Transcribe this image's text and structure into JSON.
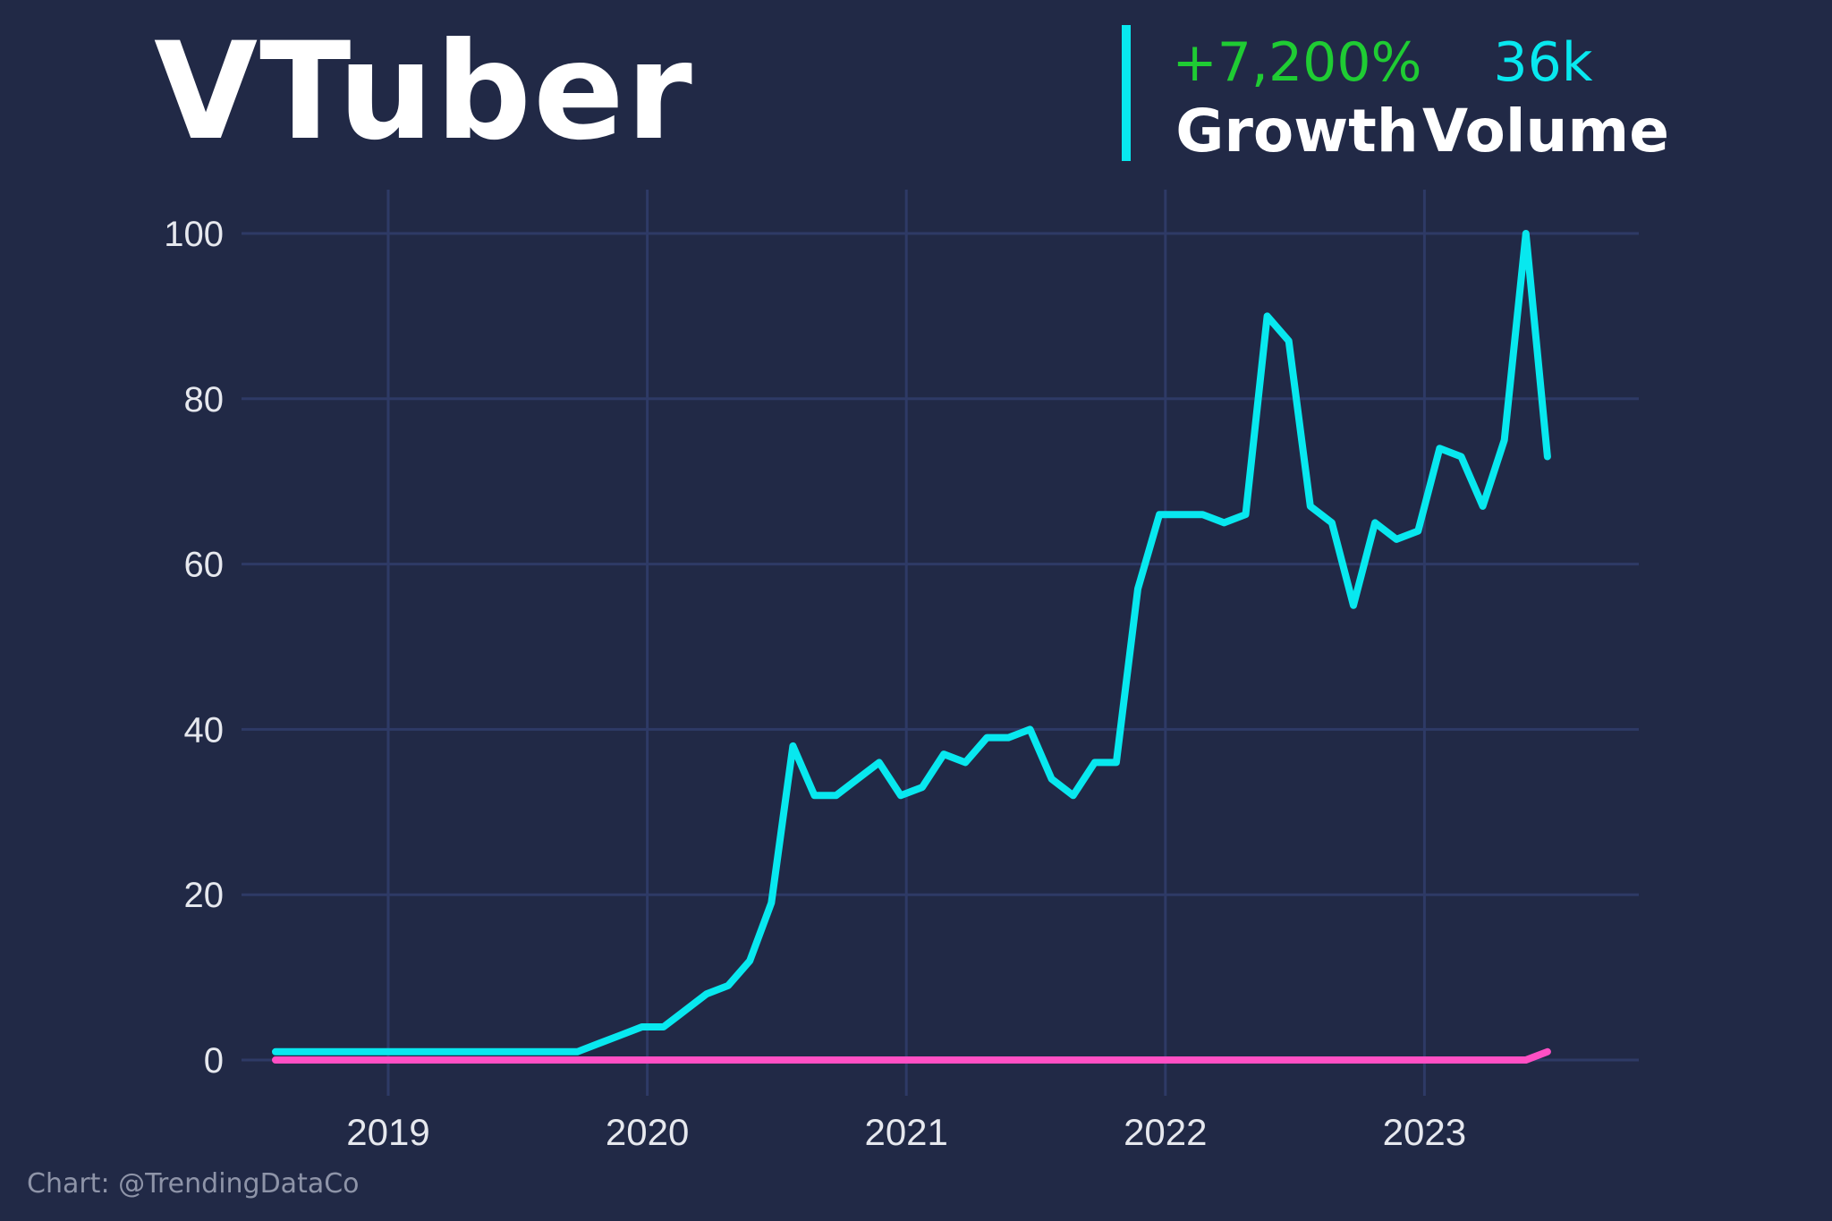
{
  "header": {
    "title": "VTuber",
    "growth_value": "+7,200%",
    "growth_label": "Growth",
    "volume_value": "36k",
    "volume_label": "Volume"
  },
  "footer": {
    "credit": "Chart: @TrendingDataCo"
  },
  "colors": {
    "background": "#212946",
    "accent": "#08e8ef",
    "growth": "#1fcc33",
    "secondary_series": "#ff4fc4",
    "grid": "#2e3a66"
  },
  "chart_data": {
    "type": "line",
    "title": "VTuber",
    "xlabel": "",
    "ylabel": "",
    "ylim": [
      0,
      100
    ],
    "yticks": [
      0,
      20,
      40,
      60,
      80,
      100
    ],
    "xticks": [
      "2019",
      "2020",
      "2021",
      "2022",
      "2023"
    ],
    "grid": true,
    "x_start": "2018-09",
    "x_step": "month",
    "series": [
      {
        "color": "#08e8ef",
        "values": [
          1,
          1,
          1,
          1,
          1,
          1,
          1,
          1,
          1,
          1,
          1,
          1,
          1,
          1,
          1,
          2,
          3,
          4,
          4,
          6,
          8,
          9,
          12,
          19,
          38,
          32,
          32,
          34,
          36,
          32,
          33,
          37,
          36,
          39,
          39,
          40,
          34,
          32,
          36,
          36,
          57,
          66,
          66,
          66,
          65,
          66,
          90,
          87,
          67,
          65,
          55,
          65,
          63,
          64,
          74,
          73,
          67,
          75,
          100,
          73
        ]
      },
      {
        "color": "#ff4fc4",
        "values": [
          0,
          0,
          0,
          0,
          0,
          0,
          0,
          0,
          0,
          0,
          0,
          0,
          0,
          0,
          0,
          0,
          0,
          0,
          0,
          0,
          0,
          0,
          0,
          0,
          0,
          0,
          0,
          0,
          0,
          0,
          0,
          0,
          0,
          0,
          0,
          0,
          0,
          0,
          0,
          0,
          0,
          0,
          0,
          0,
          0,
          0,
          0,
          0,
          0,
          0,
          0,
          0,
          0,
          0,
          0,
          0,
          0,
          0,
          0,
          1
        ]
      }
    ]
  }
}
